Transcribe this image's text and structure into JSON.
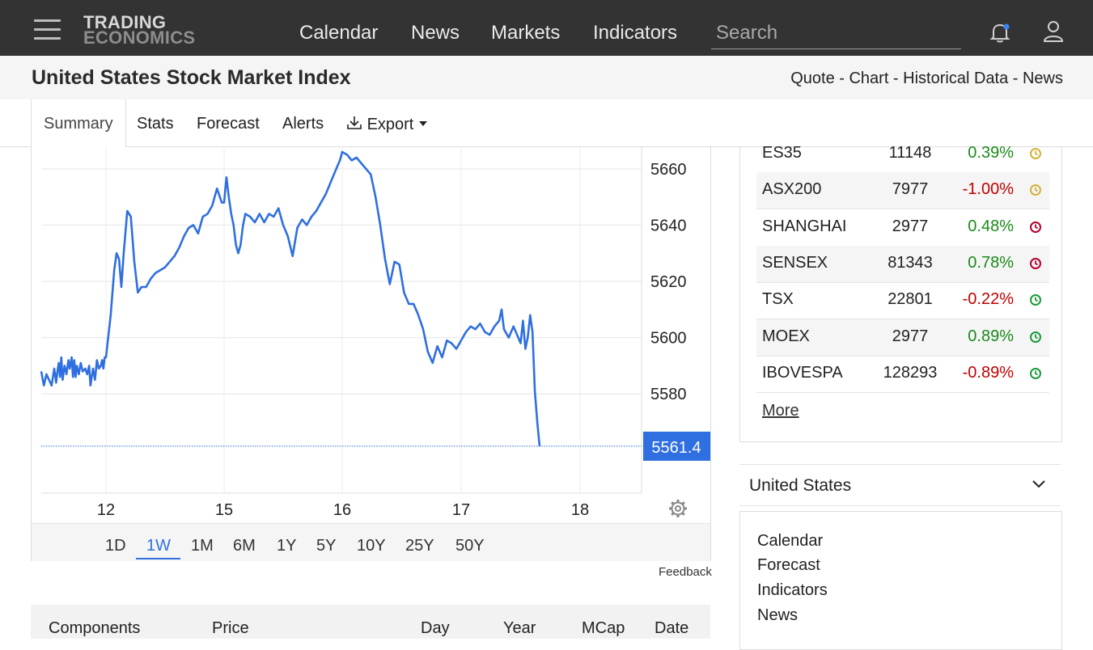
{
  "nav": {
    "logo_line1": "TRADING",
    "logo_line2": "ECONOMICS",
    "links": [
      "Calendar",
      "News",
      "Markets",
      "Indicators"
    ],
    "search_placeholder": "Search"
  },
  "header": {
    "title": "United States Stock Market Index",
    "breadcrumbs": [
      "Quote",
      "Chart",
      "Historical Data",
      "News"
    ],
    "separator": " - "
  },
  "tabs": {
    "active": "Summary",
    "items": [
      "Stats",
      "Forecast",
      "Alerts"
    ],
    "export": "Export"
  },
  "ranges": {
    "items": [
      "1D",
      "1W",
      "1M",
      "6M",
      "1Y",
      "5Y",
      "10Y",
      "25Y",
      "50Y"
    ],
    "active": "1W"
  },
  "feedback": "Feedback",
  "components_header": [
    "Components",
    "Price",
    "Day",
    "Year",
    "MCap",
    "Date"
  ],
  "markets": [
    {
      "name": "ES35",
      "price": "11148",
      "change": "0.39%",
      "status": "yellow"
    },
    {
      "name": "ASX200",
      "price": "7977",
      "change": "-1.00%",
      "status": "yellow"
    },
    {
      "name": "SHANGHAI",
      "price": "2977",
      "change": "0.48%",
      "status": "red"
    },
    {
      "name": "SENSEX",
      "price": "81343",
      "change": "0.78%",
      "status": "red"
    },
    {
      "name": "TSX",
      "price": "22801",
      "change": "-0.22%",
      "status": "green"
    },
    {
      "name": "MOEX",
      "price": "2977",
      "change": "0.89%",
      "status": "green"
    },
    {
      "name": "IBOVESPA",
      "price": "128293",
      "change": "-0.89%",
      "status": "green"
    }
  ],
  "more": "More",
  "country": "United States",
  "country_links": [
    "Calendar",
    "Forecast",
    "Indicators",
    "News"
  ],
  "colors": {
    "topbar": "#333333",
    "accent": "#2f6fe0",
    "positive": "#1a8a1a",
    "negative": "#c00000",
    "clock_yellow": "#d4b13a",
    "clock_red": "#b3002d",
    "clock_green": "#1a9a3a"
  },
  "chart_data": {
    "type": "line",
    "x_ticks": [
      "12",
      "15",
      "16",
      "17",
      "18"
    ],
    "y_ticks": [
      5580,
      5600,
      5620,
      5640,
      5660
    ],
    "ylim": [
      5545,
      5668
    ],
    "last_value": "5561.4",
    "series": [
      {
        "color": "#2f6fe0",
        "points": [
          [
            0.0,
            5588
          ],
          [
            0.04,
            5583
          ],
          [
            0.08,
            5587
          ],
          [
            0.12,
            5585
          ],
          [
            0.16,
            5583
          ],
          [
            0.2,
            5589
          ],
          [
            0.23,
            5584
          ],
          [
            0.25,
            5588
          ],
          [
            0.27,
            5591
          ],
          [
            0.29,
            5586
          ],
          [
            0.31,
            5593
          ],
          [
            0.33,
            5585
          ],
          [
            0.36,
            5590
          ],
          [
            0.39,
            5587
          ],
          [
            0.42,
            5592
          ],
          [
            0.44,
            5589
          ],
          [
            0.47,
            5593
          ],
          [
            0.49,
            5586
          ],
          [
            0.51,
            5592
          ],
          [
            0.53,
            5586
          ],
          [
            0.55,
            5590
          ],
          [
            0.58,
            5587
          ],
          [
            0.61,
            5591
          ],
          [
            0.64,
            5588
          ],
          [
            0.68,
            5589
          ],
          [
            0.71,
            5587
          ],
          [
            0.74,
            5590
          ],
          [
            0.76,
            5583
          ],
          [
            0.8,
            5589
          ],
          [
            0.83,
            5585
          ],
          [
            0.86,
            5592
          ],
          [
            0.89,
            5589
          ],
          [
            0.92,
            5590
          ],
          [
            0.94,
            5592
          ],
          [
            0.96,
            5589
          ],
          [
            0.98,
            5593
          ],
          [
            1.0,
            5593
          ],
          [
            1.04,
            5608
          ],
          [
            1.07,
            5624
          ],
          [
            1.09,
            5630
          ],
          [
            1.11,
            5628
          ],
          [
            1.13,
            5618
          ],
          [
            1.15,
            5630
          ],
          [
            1.18,
            5645
          ],
          [
            1.21,
            5643
          ],
          [
            1.24,
            5627
          ],
          [
            1.27,
            5616
          ],
          [
            1.3,
            5618
          ],
          [
            1.34,
            5618
          ],
          [
            1.38,
            5621
          ],
          [
            1.42,
            5623
          ],
          [
            1.46,
            5624
          ],
          [
            1.5,
            5625
          ],
          [
            1.54,
            5627
          ],
          [
            1.58,
            5629
          ],
          [
            1.62,
            5632
          ],
          [
            1.66,
            5636
          ],
          [
            1.7,
            5639
          ],
          [
            1.74,
            5640
          ],
          [
            1.78,
            5637
          ],
          [
            1.82,
            5643
          ],
          [
            1.86,
            5644
          ],
          [
            1.9,
            5647
          ],
          [
            1.94,
            5653
          ],
          [
            1.98,
            5648
          ],
          [
            2.0,
            5648
          ],
          [
            2.02,
            5657
          ],
          [
            2.04,
            5650
          ],
          [
            2.06,
            5644
          ],
          [
            2.08,
            5640
          ],
          [
            2.1,
            5633
          ],
          [
            2.12,
            5630
          ],
          [
            2.14,
            5633
          ],
          [
            2.16,
            5640
          ],
          [
            2.18,
            5644
          ],
          [
            2.22,
            5643
          ],
          [
            2.26,
            5641
          ],
          [
            2.3,
            5644
          ],
          [
            2.34,
            5641
          ],
          [
            2.38,
            5644
          ],
          [
            2.42,
            5643
          ],
          [
            2.46,
            5646
          ],
          [
            2.5,
            5640
          ],
          [
            2.54,
            5636
          ],
          [
            2.58,
            5629
          ],
          [
            2.62,
            5639
          ],
          [
            2.66,
            5642
          ],
          [
            2.7,
            5640
          ],
          [
            2.74,
            5643
          ],
          [
            2.78,
            5645
          ],
          [
            2.82,
            5648
          ],
          [
            2.86,
            5651
          ],
          [
            2.9,
            5655
          ],
          [
            2.94,
            5659
          ],
          [
            2.98,
            5663
          ],
          [
            3.0,
            5666
          ],
          [
            3.04,
            5665
          ],
          [
            3.08,
            5663
          ],
          [
            3.12,
            5664
          ],
          [
            3.16,
            5662
          ],
          [
            3.2,
            5660
          ],
          [
            3.24,
            5658
          ],
          [
            3.28,
            5650
          ],
          [
            3.32,
            5640
          ],
          [
            3.36,
            5628
          ],
          [
            3.4,
            5619
          ],
          [
            3.44,
            5627
          ],
          [
            3.48,
            5626
          ],
          [
            3.52,
            5616
          ],
          [
            3.56,
            5612
          ],
          [
            3.6,
            5612
          ],
          [
            3.64,
            5608
          ],
          [
            3.68,
            5603
          ],
          [
            3.72,
            5595
          ],
          [
            3.76,
            5591
          ],
          [
            3.8,
            5597
          ],
          [
            3.84,
            5593
          ],
          [
            3.88,
            5599
          ],
          [
            3.92,
            5598
          ],
          [
            3.96,
            5596
          ],
          [
            4.0,
            5599
          ],
          [
            4.04,
            5602
          ],
          [
            4.08,
            5604
          ],
          [
            4.12,
            5603
          ],
          [
            4.16,
            5605
          ],
          [
            4.2,
            5602
          ],
          [
            4.24,
            5601
          ],
          [
            4.28,
            5604
          ],
          [
            4.32,
            5606
          ],
          [
            4.34,
            5610
          ],
          [
            4.36,
            5603
          ],
          [
            4.4,
            5600
          ],
          [
            4.44,
            5604
          ],
          [
            4.48,
            5600
          ],
          [
            4.5,
            5598
          ],
          [
            4.52,
            5606
          ],
          [
            4.54,
            5596
          ],
          [
            4.56,
            5600
          ],
          [
            4.58,
            5608
          ],
          [
            4.6,
            5602
          ],
          [
            4.62,
            5581
          ],
          [
            4.64,
            5570
          ],
          [
            4.66,
            5561.4
          ]
        ]
      }
    ]
  }
}
